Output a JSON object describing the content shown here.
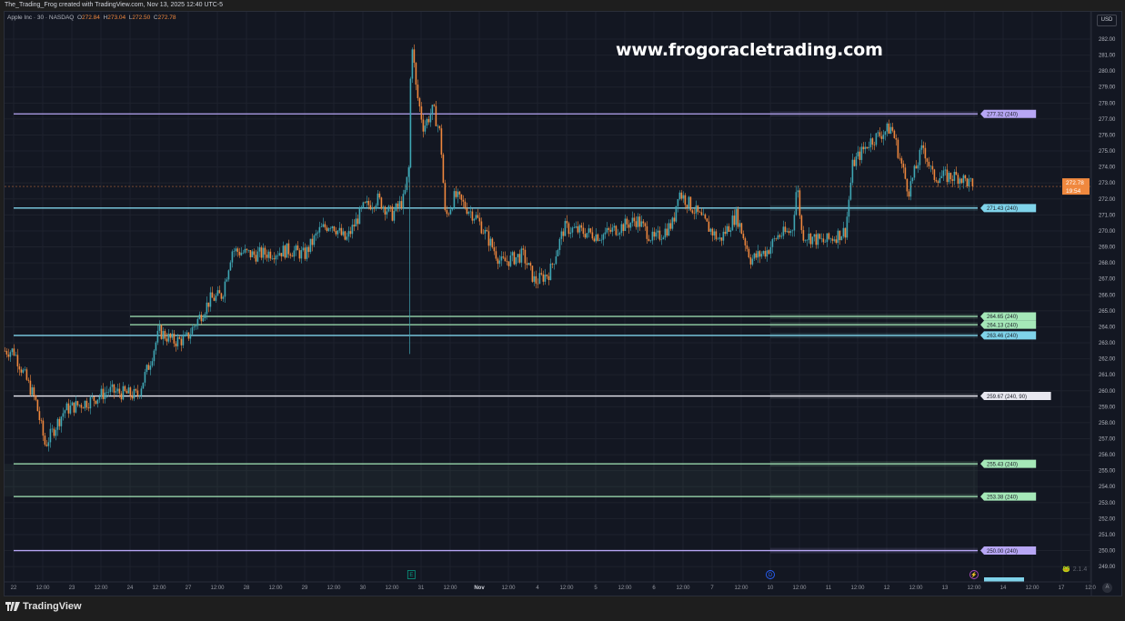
{
  "header": {
    "attribution": "The_Trading_Frog created with TradingView.com, Nov 13, 2025 12:40 UTC-5"
  },
  "legend": {
    "symbol": "Apple Inc · 30 · NASDAQ",
    "o_label": "O",
    "o": "272.84",
    "h_label": "H",
    "h": "273.04",
    "l_label": "L",
    "l": "272.50",
    "c_label": "C",
    "c": "272.78"
  },
  "watermark": "www.frogoracletrading.com",
  "currency_button": "USD",
  "auto_button": "A",
  "brand": "TradingView",
  "indicator_version": "2.1.4",
  "colors": {
    "background": "#131722",
    "up": "#3fa7b5",
    "down": "#f0883e",
    "purple": "#b7a6f5",
    "cyan": "#7fd3ea",
    "green": "#a5e8b8",
    "white": "#e8e8f0"
  },
  "chart_data": {
    "type": "candlestick",
    "title": "",
    "symbol": "AAPL",
    "interval": "30",
    "ylim": [
      248.3,
      283.6
    ],
    "y_ticks": [
      249,
      250,
      251,
      252,
      253,
      254,
      255,
      256,
      257,
      258,
      259,
      260,
      261,
      262,
      263,
      264,
      265,
      266,
      267,
      268,
      269,
      270,
      271,
      272,
      273,
      274,
      275,
      276,
      277,
      278,
      279,
      280,
      281,
      282
    ],
    "trading_days": [
      "10-22",
      "10-23",
      "10-24",
      "10-27",
      "10-28",
      "10-29",
      "10-30",
      "10-31",
      "11-03",
      "11-04",
      "11-05",
      "11-06",
      "11-07",
      "11-10",
      "11-11",
      "11-12",
      "11-13",
      "11-14",
      "11-17"
    ],
    "x_ticks": [
      "22",
      "12:00",
      "23",
      "12:00",
      "24",
      "12:00",
      "27",
      "12:00",
      "28",
      "12:00",
      "29",
      "12:00",
      "30",
      "12:00",
      "31",
      "12:00",
      "Nov",
      "12:00",
      "4",
      "12:00",
      "5",
      "12:00",
      "6",
      "12:00",
      "7",
      "12:00",
      "10",
      "12:00",
      "11",
      "12:00",
      "12",
      "12:00",
      "13",
      "12:00",
      "14",
      "12:00",
      "17",
      "12:0"
    ],
    "approx_close_path": [
      [
        "10-22 00:00",
        262.5
      ],
      [
        "10-22 09:00",
        259.4
      ],
      [
        "10-22 13:00",
        256.6
      ],
      [
        "10-22 21:00",
        258.8
      ],
      [
        "10-23 08:00",
        259.4
      ],
      [
        "10-23 15:00",
        260.0
      ],
      [
        "10-24 03:00",
        259.7
      ],
      [
        "10-24 08:00",
        261.7
      ],
      [
        "10-24 12:00",
        263.7
      ],
      [
        "10-24 18:00",
        263.1
      ],
      [
        "10-24 23:00",
        263.2
      ],
      [
        "10-27 09:00",
        265.7
      ],
      [
        "10-27 14:00",
        266.0
      ],
      [
        "10-27 18:00",
        268.8
      ],
      [
        "10-28 03:00",
        268.5
      ],
      [
        "10-28 18:00",
        268.8
      ],
      [
        "10-29 00:00",
        268.5
      ],
      [
        "10-29 06:00",
        270.0
      ],
      [
        "10-29 11:00",
        270.5
      ],
      [
        "10-29 17:00",
        269.4
      ],
      [
        "10-30 00:00",
        271.4
      ],
      [
        "10-30 06:00",
        272.0
      ],
      [
        "10-30 12:00",
        271.0
      ],
      [
        "10-30 17:00",
        272.0
      ],
      [
        "10-30 19:00",
        274.0
      ],
      [
        "10-30 20:00",
        282.4
      ],
      [
        "10-30 22:00",
        278.8
      ],
      [
        "10-31 01:00",
        276.5
      ],
      [
        "10-31 05:00",
        277.6
      ],
      [
        "10-31 08:00",
        276.0
      ],
      [
        "10-31 10:00",
        270.8
      ],
      [
        "10-31 14:00",
        272.2
      ],
      [
        "10-31 23:00",
        270.8
      ],
      [
        "11-03 09:00",
        268.0
      ],
      [
        "11-03 18:00",
        268.5
      ],
      [
        "11-03 23:00",
        266.8
      ],
      [
        "11-04 05:00",
        267.4
      ],
      [
        "11-04 11:00",
        270.2
      ],
      [
        "11-05 02:00",
        269.7
      ],
      [
        "11-05 17:00",
        270.7
      ],
      [
        "11-06 00:00",
        269.4
      ],
      [
        "11-06 08:00",
        270.5
      ],
      [
        "11-06 10:00",
        272.5
      ],
      [
        "11-06 15:00",
        271.6
      ],
      [
        "11-07 03:00",
        269.4
      ],
      [
        "11-07 10:00",
        271.0
      ],
      [
        "11-07 16:00",
        268.2
      ],
      [
        "11-07 23:00",
        268.8
      ],
      [
        "11-10 03:00",
        269.7
      ],
      [
        "11-10 09:00",
        270.0
      ],
      [
        "11-10 11:00",
        273.0
      ],
      [
        "11-10 13:00",
        269.8
      ],
      [
        "11-10 22:00",
        269.3
      ],
      [
        "11-11 07:00",
        270.0
      ],
      [
        "11-11 10:00",
        274.2
      ],
      [
        "11-11 17:00",
        275.6
      ],
      [
        "11-12 02:00",
        276.5
      ],
      [
        "11-12 09:00",
        272.5
      ],
      [
        "11-12 15:00",
        275.3
      ],
      [
        "11-12 19:00",
        273.4
      ],
      [
        "11-13 06:00",
        273.4
      ],
      [
        "11-13 12:00",
        272.78
      ]
    ],
    "last_price": {
      "value": "272.78",
      "countdown": "19:54"
    },
    "levels": [
      {
        "price": 277.32,
        "label": "277.32 (240)",
        "color": "purple",
        "start": "10-22 00:00"
      },
      {
        "price": 271.43,
        "label": "271.43 (240)",
        "color": "cyan",
        "start": "10-22 00:00"
      },
      {
        "price": 264.65,
        "label": "264.65 (240)",
        "color": "green",
        "start": "10-24 00:00"
      },
      {
        "price": 264.13,
        "label": "264.13 (240)",
        "color": "green",
        "start": "10-24 00:00"
      },
      {
        "price": 263.46,
        "label": "263.46 (240)",
        "color": "cyan",
        "start": "10-22 00:00"
      },
      {
        "price": 259.67,
        "label": "259.67 (240, 90)",
        "color": "white",
        "start": "10-22 00:00"
      },
      {
        "price": 255.43,
        "label": "255.43 (240)",
        "color": "green",
        "start": "10-22 00:00"
      },
      {
        "price": 253.38,
        "label": "253.38 (240)",
        "color": "green",
        "start": "10-22 00:00"
      },
      {
        "price": 250.0,
        "label": "250.00 (240)",
        "color": "purple",
        "start": "10-22 00:00"
      }
    ],
    "zone": {
      "from": 253.38,
      "to": 255.43
    },
    "events": [
      {
        "type": "earnings",
        "glyph": "E",
        "time": "10-30 20:00",
        "color": "#089981"
      },
      {
        "type": "dividend",
        "glyph": "D",
        "time": "11-10 00:00",
        "color": "#2962ff"
      },
      {
        "type": "split-or-news",
        "glyph": "⚡",
        "time": "11-13 12:00",
        "color": "#ab47bc"
      }
    ]
  }
}
